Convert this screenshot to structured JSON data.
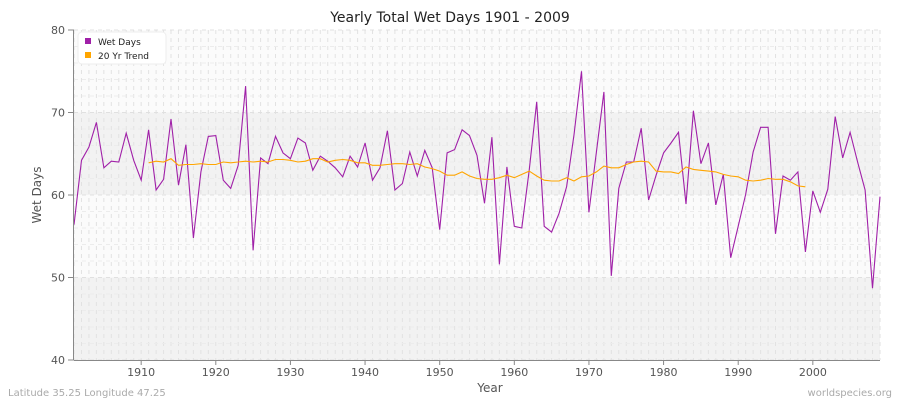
{
  "chart_data": {
    "type": "line",
    "title": "Yearly Total Wet Days 1901 - 2009",
    "xlabel": "Year",
    "ylabel": "Wet Days",
    "xlim": [
      1901,
      2009
    ],
    "ylim": [
      40,
      80
    ],
    "x_ticks": [
      1910,
      1920,
      1930,
      1940,
      1950,
      1960,
      1970,
      1980,
      1990,
      2000
    ],
    "y_ticks": [
      40,
      50,
      60,
      70,
      80
    ],
    "grid": true,
    "legend": "top-left",
    "series": [
      {
        "name": "Wet Days",
        "color": "#a020a8",
        "start_year": 1901,
        "values": [
          56.4,
          64.2,
          65.8,
          68.8,
          63.3,
          64.1,
          64.0,
          67.5,
          64.2,
          61.8,
          67.9,
          60.6,
          61.9,
          69.2,
          61.2,
          66.1,
          54.8,
          62.8,
          67.1,
          67.2,
          61.8,
          60.8,
          63.6,
          73.2,
          53.3,
          64.5,
          63.8,
          67.1,
          65.1,
          64.4,
          66.9,
          66.3,
          63.0,
          64.7,
          64.1,
          63.3,
          62.2,
          64.7,
          63.4,
          66.3,
          61.8,
          63.3,
          67.8,
          60.6,
          61.4,
          65.2,
          62.3,
          65.4,
          63.3,
          55.8,
          65.1,
          65.5,
          67.9,
          67.2,
          64.8,
          59.0,
          67.0,
          51.6,
          63.4,
          56.2,
          56.0,
          63.0,
          71.3,
          56.2,
          55.5,
          57.8,
          61.0,
          67.3,
          75.0,
          57.9,
          65.2,
          72.5,
          50.2,
          60.8,
          64.0,
          64.0,
          68.1,
          59.4,
          62.4,
          65.1,
          66.3,
          67.6,
          58.9,
          70.2,
          63.8,
          66.3,
          58.8,
          62.5,
          52.4,
          56.2,
          60.1,
          65.2,
          68.2,
          68.2,
          55.3,
          62.3,
          61.8,
          62.8,
          53.1,
          60.5,
          57.9,
          60.7,
          69.5,
          64.5,
          67.6,
          64.0,
          60.6,
          48.7,
          59.8
        ]
      },
      {
        "name": "20 Yr Trend",
        "color": "#ffa500",
        "start_year": 1911,
        "values": [
          63.9,
          64.1,
          64.0,
          64.4,
          63.6,
          63.7,
          63.7,
          63.8,
          63.7,
          63.7,
          64.0,
          63.9,
          64.0,
          64.1,
          64.0,
          64.1,
          64.0,
          64.3,
          64.3,
          64.2,
          64.0,
          64.1,
          64.4,
          64.4,
          64.0,
          64.2,
          64.3,
          64.2,
          63.9,
          63.9,
          63.6,
          63.6,
          63.7,
          63.8,
          63.8,
          63.7,
          63.8,
          63.4,
          63.2,
          62.9,
          62.4,
          62.4,
          62.8,
          62.3,
          62.0,
          61.9,
          61.9,
          62.1,
          62.4,
          62.1,
          62.5,
          62.9,
          62.3,
          61.8,
          61.7,
          61.7,
          62.1,
          61.7,
          62.2,
          62.3,
          62.8,
          63.5,
          63.3,
          63.3,
          63.7,
          64.0,
          64.1,
          64.0,
          62.9,
          62.8,
          62.8,
          62.6,
          63.4,
          63.1,
          63.0,
          62.9,
          62.8,
          62.5,
          62.3,
          62.2,
          61.8,
          61.7,
          61.8,
          62.0,
          61.9,
          61.9,
          61.6,
          61.1,
          61.0
        ]
      }
    ]
  },
  "footer": {
    "location": "Latitude 35.25 Longitude 47.25",
    "source": "worldspecies.org"
  }
}
